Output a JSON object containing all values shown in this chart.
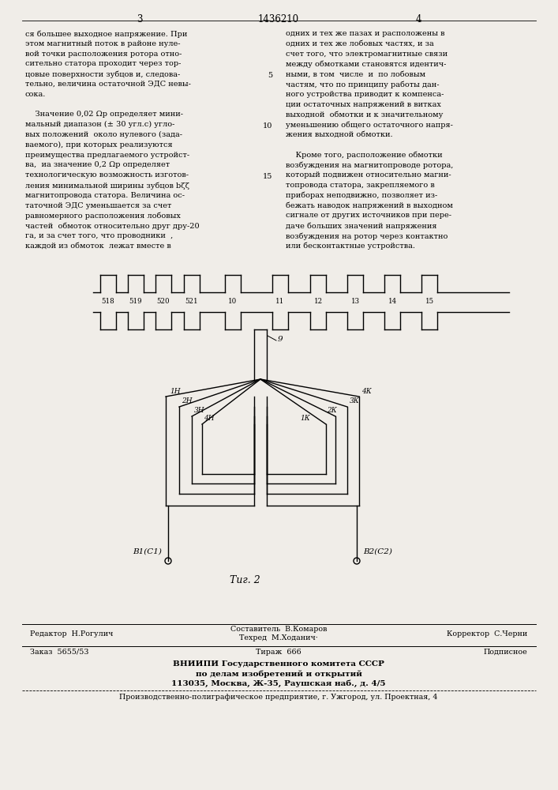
{
  "bg_color": "#f0ede8",
  "page_num_left": "3",
  "page_num_center": "1436210",
  "page_num_right": "4",
  "text_col1": [
    "ся большее выходное напряжение. При",
    "этом магнитный поток в районе нуле-",
    "вой точки расположения ротора отно-",
    "сительно статора проходит через тор-",
    "цовые поверхности зубцов и, следова-",
    "тельно, величина остаточной ЭДС невы-",
    "сока.",
    "",
    "    Значение 0,02 Ωp определяет мини-",
    "мальный диапазон (± 30 угл.с) угло-",
    "вых положений  около нулевого (зада-",
    "ваемого), при которых реализуются",
    "преимущества предлагаемого устройст-",
    "ва,  иа значение 0,2 Ωp определяет",
    "технологическую возможность изготов-",
    "ления минимальной ширины зубцов bζζ",
    "магнитопровода статора. Величина ос-",
    "таточной ЭДС уменьшается за счет",
    "равномерного расположения лобовых",
    "частей  обмоток относительно друг дру-20",
    "га, и за счет того, что проводники  ,",
    "каждой из обмоток  лежат вместе в"
  ],
  "text_col2": [
    "одних и тех же пазах и расположены в",
    "одних и тех же лобовых частях, и за",
    "счет того, что электромагнитные связи",
    "между обмотками становятся идентич-",
    "ными, в том  числе  и  по лобовым",
    "частям, что по принципу работы дан-",
    "ного устройства приводит к компенса-",
    "ции остаточных напряжений в витках",
    "выходной  обмотки и к значительному",
    "уменьшению общего остаточного напря-",
    "жения выходной обмотки.",
    "",
    "    Кроме того, расположение обмотки",
    "возбуждения на магнитопроводе ротора,",
    "который подвижен относительно магни-",
    "топровода статора, закрепляемого в",
    "приборах неподвижно, позволяет из-",
    "бежать наводок напряжений в выходном",
    "сигнале от других источников при пере-",
    "даче больших значений напряжения",
    "возбуждения на ротор через контактно",
    "или бесконтактные устройства."
  ],
  "tooth_labels": [
    "518",
    "519",
    "520",
    "521",
    "10",
    "11",
    "12",
    "13",
    "14",
    "15"
  ],
  "fig_caption": "Τиг. 2",
  "footer_line1_left": "Редактор  Н.Рогулич",
  "footer_line1_center_top": "Составитель  В.Комаров",
  "footer_line1_center_bot": "Техред  М.Ходанич·",
  "footer_line1_right": "Корректор  С.Черни",
  "footer_line2_left": "Заказ  5655/53",
  "footer_line2_center": "Тираж  666",
  "footer_line2_right": "Подписное",
  "footer_line3": "ВНИИПИ Государственного комитета СССР",
  "footer_line4": "по делам изобретений и открытий",
  "footer_line5": "113035, Москва, Ж-35, Раушская наб., д. 4/5",
  "footer_line6": "Производственно-полиграфическое предприятие, г. Ужгород, ул. Проектная, 4"
}
